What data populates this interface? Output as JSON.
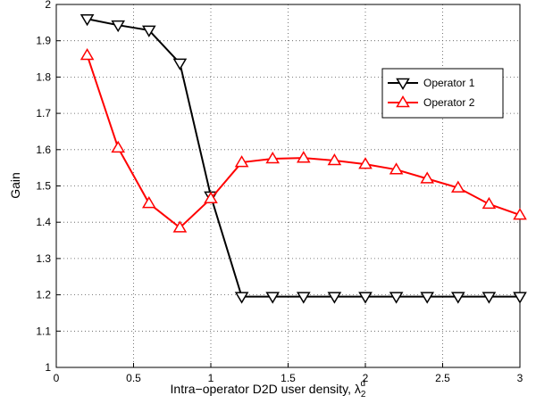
{
  "chart_data": {
    "type": "line",
    "x_label": "Intra−operator D2D user density, λ",
    "x_label_sub": "2",
    "x_label_sup": "d",
    "y_label": "Gain",
    "x": [
      0.2,
      0.4,
      0.6,
      0.8,
      1.0,
      1.2,
      1.4,
      1.6,
      1.8,
      2.0,
      2.2,
      2.4,
      2.6,
      2.8,
      3.0
    ],
    "series": [
      {
        "name": "Operator 1",
        "color": "#000000",
        "marker": "triangle-down",
        "values": [
          1.96,
          1.943,
          1.929,
          1.838,
          1.472,
          1.195,
          1.195,
          1.195,
          1.195,
          1.195,
          1.195,
          1.195,
          1.195,
          1.195,
          1.195
        ]
      },
      {
        "name": "Operator 2",
        "color": "#ff0000",
        "marker": "triangle-up",
        "values": [
          1.86,
          1.605,
          1.452,
          1.385,
          1.465,
          1.565,
          1.575,
          1.577,
          1.57,
          1.56,
          1.545,
          1.52,
          1.495,
          1.45,
          1.42
        ]
      }
    ],
    "xlim": [
      0,
      3
    ],
    "xticks": [
      0,
      0.5,
      1,
      1.5,
      2,
      2.5,
      3
    ],
    "ylim": [
      1,
      2
    ],
    "yticks": [
      1,
      1.1,
      1.2,
      1.3,
      1.4,
      1.5,
      1.6,
      1.7,
      1.8,
      1.9,
      2
    ],
    "grid": true,
    "legend": "upper right"
  }
}
